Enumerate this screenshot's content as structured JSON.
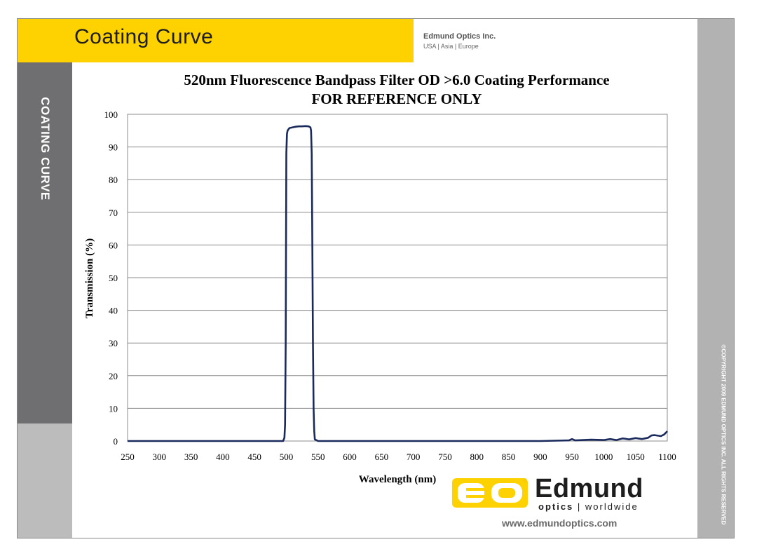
{
  "header": {
    "title": "Coating Curve",
    "company": "Edmund Optics Inc.",
    "regions": "USA | Asia | Europe"
  },
  "sidebar": {
    "label": "COATING CURVE"
  },
  "copyright": "©COPYRIGHT 2009 EDMUND OPTICS INC. ALL RIGHTS RESERVED",
  "logo": {
    "name": "Edmund",
    "tagline_bold": "optics",
    "tagline_sep": " | ",
    "tagline_rest": "worldwide",
    "website": "www.edmundoptics.com",
    "registered_mark": "®"
  },
  "colors": {
    "header_yellow": "#fdd200",
    "sidebar_dark": "#6f6f71",
    "line": "#1b2a5c"
  },
  "chart_data": {
    "type": "line",
    "title": "520nm Fluorescence Bandpass Filter OD >6.0 Coating Performance",
    "subtitle": "FOR REFERENCE ONLY",
    "xlabel": "Wavelength (nm)",
    "ylabel": "Transmission (%)",
    "xlim": [
      250,
      1100
    ],
    "ylim": [
      0,
      100
    ],
    "xticks": [
      250,
      300,
      350,
      400,
      450,
      500,
      550,
      600,
      650,
      700,
      750,
      800,
      850,
      900,
      950,
      1000,
      1050,
      1100
    ],
    "yticks": [
      0,
      10,
      20,
      30,
      40,
      50,
      60,
      70,
      80,
      90,
      100
    ],
    "grid": "horizontal",
    "series": [
      {
        "x": [
          250,
          400,
          495,
          497,
          498,
          499,
          500,
          501,
          502,
          503,
          505,
          510,
          515,
          520,
          525,
          530,
          535,
          538,
          539,
          540,
          541,
          542,
          543,
          544,
          545,
          550,
          600,
          700,
          800,
          900,
          945,
          950,
          955,
          980,
          1000,
          1010,
          1020,
          1030,
          1040,
          1050,
          1060,
          1070,
          1075,
          1080,
          1090,
          1095,
          1100
        ],
        "y": [
          0,
          0,
          0,
          1,
          5,
          30,
          88,
          94,
          95,
          95.3,
          95.8,
          96,
          96.2,
          96.3,
          96.3,
          96.4,
          96.3,
          96,
          95,
          88,
          60,
          30,
          10,
          3,
          0.5,
          0,
          0,
          0,
          0,
          0,
          0.2,
          0.6,
          0.2,
          0.4,
          0.3,
          0.6,
          0.3,
          0.8,
          0.5,
          0.9,
          0.6,
          1.0,
          1.7,
          1.8,
          1.5,
          2.0,
          3.0
        ]
      }
    ]
  }
}
